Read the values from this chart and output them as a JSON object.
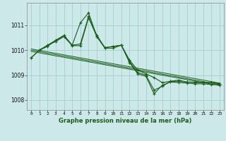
{
  "title": "Graphe pression niveau de la mer (hPa)",
  "bg_color": "#cce8e8",
  "grid_color": "#99cccc",
  "line_color": "#1a5c1a",
  "xlim": [
    -0.5,
    23.5
  ],
  "ylim": [
    1007.6,
    1011.9
  ],
  "yticks": [
    1008,
    1009,
    1010,
    1011
  ],
  "xticks": [
    0,
    1,
    2,
    3,
    4,
    5,
    6,
    7,
    8,
    9,
    10,
    11,
    12,
    13,
    14,
    15,
    16,
    17,
    18,
    19,
    20,
    21,
    22,
    23
  ],
  "series1": {
    "x": [
      0,
      1,
      2,
      3,
      4,
      5,
      6,
      7,
      8,
      9,
      10,
      11,
      12,
      13,
      14,
      15,
      16,
      17,
      18,
      19,
      20,
      21,
      22,
      23
    ],
    "y": [
      1009.7,
      1010.0,
      1010.2,
      1010.4,
      1010.6,
      1010.2,
      1010.25,
      1011.35,
      1010.6,
      1010.1,
      1010.15,
      1010.2,
      1009.6,
      1009.2,
      1009.05,
      1008.9,
      1008.7,
      1008.75,
      1008.75,
      1008.72,
      1008.72,
      1008.7,
      1008.7,
      1008.65
    ]
  },
  "series2": {
    "x": [
      1,
      2,
      3,
      4,
      5,
      6,
      7,
      8,
      9,
      10,
      11,
      12,
      13,
      14,
      15,
      16,
      17,
      18,
      19,
      20,
      21,
      22,
      23
    ],
    "y": [
      1010.0,
      1010.2,
      1010.35,
      1010.55,
      1010.2,
      1011.1,
      1011.5,
      1010.55,
      1010.1,
      1010.15,
      1010.2,
      1009.55,
      1009.1,
      1009.0,
      1008.4,
      1008.55,
      1008.75,
      1008.8,
      1008.72,
      1008.7,
      1008.7,
      1008.7,
      1008.65
    ]
  },
  "series3": {
    "x": [
      0,
      1,
      2,
      3,
      4,
      5,
      6,
      7,
      8,
      9,
      10,
      11,
      12,
      13,
      14,
      15,
      16,
      17,
      18,
      19,
      20,
      21,
      22,
      23
    ],
    "y": [
      1009.7,
      1010.0,
      1010.15,
      1010.4,
      1010.55,
      1010.18,
      1010.18,
      1011.3,
      1010.55,
      1010.08,
      1010.08,
      1010.2,
      1009.5,
      1009.05,
      1008.95,
      1008.25,
      1008.6,
      1008.72,
      1008.7,
      1008.68,
      1008.65,
      1008.65,
      1008.62,
      1008.6
    ]
  },
  "trend1": {
    "x": [
      0,
      23
    ],
    "y": [
      1010.0,
      1008.62
    ]
  },
  "trend2": {
    "x": [
      0,
      23
    ],
    "y": [
      1010.05,
      1008.68
    ]
  },
  "trend3": {
    "x": [
      0,
      23
    ],
    "y": [
      1009.95,
      1008.58
    ]
  }
}
